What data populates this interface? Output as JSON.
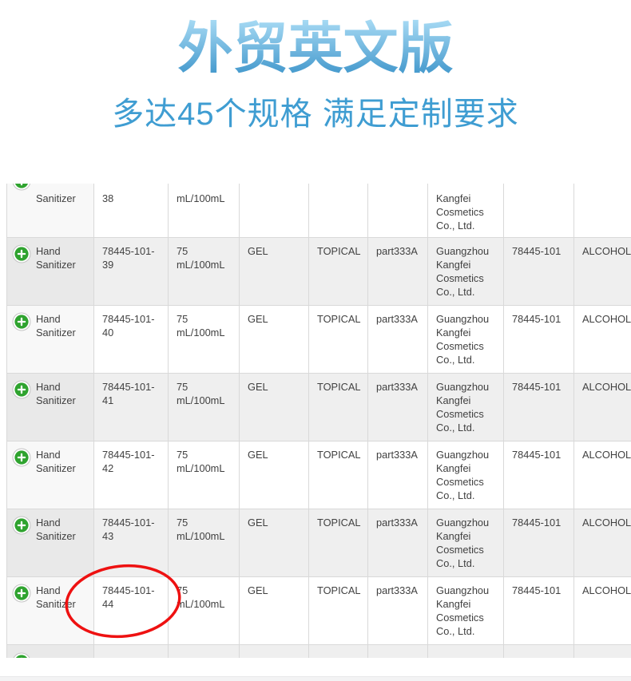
{
  "header": {
    "title": "外贸英文版",
    "subtitle": "多达45个规格 满足定制要求"
  },
  "colors": {
    "title_gradient_top": "#aadcf5",
    "title_gradient_bottom": "#3b93c9",
    "subtitle_blue": "#3f9dd2",
    "icon_green": "#2fa32f",
    "icon_ring_gray": "#c4c4c4",
    "highlight_red": "#ee1111",
    "row_shade": "#efefef",
    "border_gray": "#d9d9d9"
  },
  "table": {
    "partial_top_row": {
      "shaded": false,
      "cells": [
        "Sanitizer",
        "38",
        "mL/100mL",
        "",
        "",
        "",
        "Kangfei\nCosmetics\nCo., Ltd.",
        "",
        ""
      ]
    },
    "rows": [
      {
        "shaded": true,
        "cells": [
          "Hand Sanitizer",
          "78445-101-\n39",
          "75\nmL/100mL",
          "GEL",
          "TOPICAL",
          "part333A",
          "Guangzhou\nKangfei\nCosmetics\nCo., Ltd.",
          "78445-101",
          "ALCOHOL"
        ]
      },
      {
        "shaded": false,
        "cells": [
          "Hand Sanitizer",
          "78445-101-\n40",
          "75\nmL/100mL",
          "GEL",
          "TOPICAL",
          "part333A",
          "Guangzhou\nKangfei\nCosmetics\nCo., Ltd.",
          "78445-101",
          "ALCOHOL"
        ]
      },
      {
        "shaded": true,
        "cells": [
          "Hand Sanitizer",
          "78445-101-\n41",
          "75\nmL/100mL",
          "GEL",
          "TOPICAL",
          "part333A",
          "Guangzhou\nKangfei\nCosmetics\nCo., Ltd.",
          "78445-101",
          "ALCOHOL"
        ]
      },
      {
        "shaded": false,
        "cells": [
          "Hand Sanitizer",
          "78445-101-\n42",
          "75\nmL/100mL",
          "GEL",
          "TOPICAL",
          "part333A",
          "Guangzhou\nKangfei\nCosmetics\nCo., Ltd.",
          "78445-101",
          "ALCOHOL"
        ]
      },
      {
        "shaded": true,
        "cells": [
          "Hand Sanitizer",
          "78445-101-\n43",
          "75\nmL/100mL",
          "GEL",
          "TOPICAL",
          "part333A",
          "Guangzhou\nKangfei\nCosmetics\nCo., Ltd.",
          "78445-101",
          "ALCOHOL"
        ]
      },
      {
        "shaded": false,
        "cells": [
          "Hand Sanitizer",
          "78445-101-\n44",
          "75\nmL/100mL",
          "GEL",
          "TOPICAL",
          "part333A",
          "Guangzhou\nKangfei\nCosmetics\nCo., Ltd.",
          "78445-101",
          "ALCOHOL"
        ]
      }
    ],
    "partial_bottom_row": {
      "shaded": true,
      "cells": [
        "",
        "",
        "",
        "",
        "",
        "",
        "",
        "",
        ""
      ]
    }
  },
  "annotation": {
    "circled_value": "78445-101-44"
  }
}
